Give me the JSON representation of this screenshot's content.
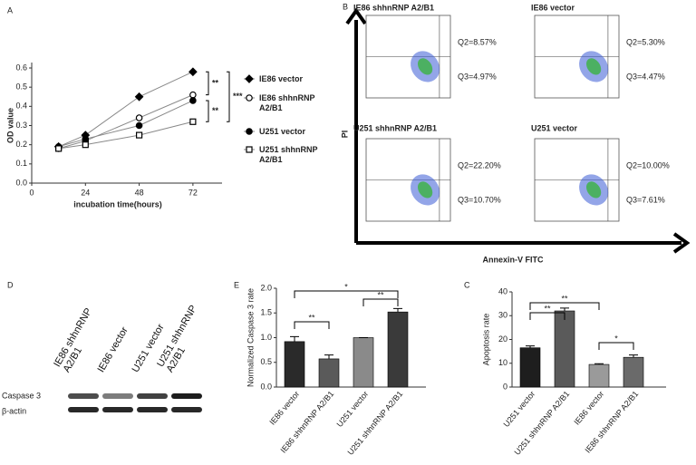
{
  "chart_data": [
    {
      "type": "line",
      "label": "A",
      "ylabel": "OD value",
      "xlabel": "incubation time(hours)",
      "xlim": [
        0,
        85
      ],
      "xticks": [
        0,
        24,
        48,
        72
      ],
      "ylim": [
        0,
        0.6
      ],
      "yticks": [
        {
          "value": 0,
          "label": "0.0"
        },
        0.1,
        0.2,
        0.3,
        0.4,
        0.5,
        0.6
      ],
      "x": [
        12,
        24,
        48,
        72
      ],
      "series": [
        {
          "name": "IE86 vector",
          "color": "#000000",
          "marker": "diamond",
          "values": [
            0.19,
            0.25,
            0.45,
            0.58
          ],
          "errors": [
            0.01,
            0.01,
            0.02,
            0.015
          ]
        },
        {
          "name": "IE86 shhnRNP A2/B1",
          "color": "#000000",
          "marker": "open-circle",
          "values": [
            0.18,
            0.22,
            0.34,
            0.46
          ],
          "errors": [
            0.01,
            0.01,
            0.01,
            0.015
          ]
        },
        {
          "name": "U251 vector",
          "color": "#000000",
          "marker": "circle",
          "values": [
            0.19,
            0.23,
            0.3,
            0.43
          ],
          "errors": [
            0.01,
            0.02,
            0.01,
            0.015
          ]
        },
        {
          "name": "U251 shhnRNP A2/B1",
          "color": "#000000",
          "marker": "open-square",
          "values": [
            0.18,
            0.2,
            0.25,
            0.32
          ],
          "errors": [
            0.01,
            0.01,
            0.01,
            0.015
          ]
        }
      ],
      "annotations": [
        "**",
        "***",
        "**"
      ]
    },
    {
      "type": "flow",
      "label": "B",
      "ylabel": "PI",
      "xlabel": "Annexin-V FITC",
      "panels": [
        {
          "title": "IE86 shhnRNP A2/B1",
          "q2": "Q2=8.57%",
          "q3": "Q3=4.97%"
        },
        {
          "title": "IE86 vector",
          "q2": "Q2=5.30%",
          "q3": "Q3=4.47%"
        },
        {
          "title": "U251 shhnRNP A2/B1",
          "q2": "Q2=22.20%",
          "q3": "Q3=10.70%"
        },
        {
          "title": "U251 vector",
          "q2": "Q2=10.00%",
          "q3": "Q3=7.61%"
        }
      ]
    },
    {
      "type": "blot",
      "label": "D",
      "lanes": [
        "IE86 shhnRNP A2/B1",
        "IE86 vector",
        "U251 vector",
        "U251  shhnRNP A2/B1"
      ],
      "rows": [
        "Caspase 3",
        "β-actin"
      ]
    },
    {
      "type": "bar",
      "label": "E",
      "ylabel": "Normalized Caspase 3 rate",
      "categories": [
        "IE86 vector",
        "IE86 shhnRNP A2/B1",
        "U251 vector",
        "U251 shhnRNP A2/B1"
      ],
      "values": [
        0.92,
        0.57,
        1.0,
        1.52
      ],
      "errors": [
        0.1,
        0.08,
        0.0,
        0.07
      ],
      "colors": [
        "#2a2a2a",
        "#5a5a5a",
        "#8a8a8a",
        "#3a3a3a"
      ],
      "ylim": [
        0,
        2
      ],
      "yticks": [
        {
          "value": 0,
          "label": "0.0"
        },
        0.5,
        {
          "value": 1,
          "label": "1.0"
        },
        1.5,
        {
          "value": 2,
          "label": "2.0"
        }
      ],
      "annotations": [
        "**",
        "**",
        "*"
      ]
    },
    {
      "type": "bar",
      "label": "C",
      "ylabel": "Apoptosis rate",
      "categories": [
        "U251 vector",
        "U251 shhnRNP A2/B1",
        "IE86 vector",
        "IE86 shhnRNP A2/B1"
      ],
      "values": [
        16.5,
        32,
        9.5,
        12.5
      ],
      "errors": [
        0.8,
        1.2,
        0.3,
        1.0
      ],
      "colors": [
        "#1e1e1e",
        "#5a5a5a",
        "#9a9a9a",
        "#6a6a6a"
      ],
      "ylim": [
        0,
        40
      ],
      "yticks": [
        0,
        10,
        20,
        30,
        40
      ],
      "annotations": [
        "**",
        "**",
        "*"
      ]
    }
  ]
}
